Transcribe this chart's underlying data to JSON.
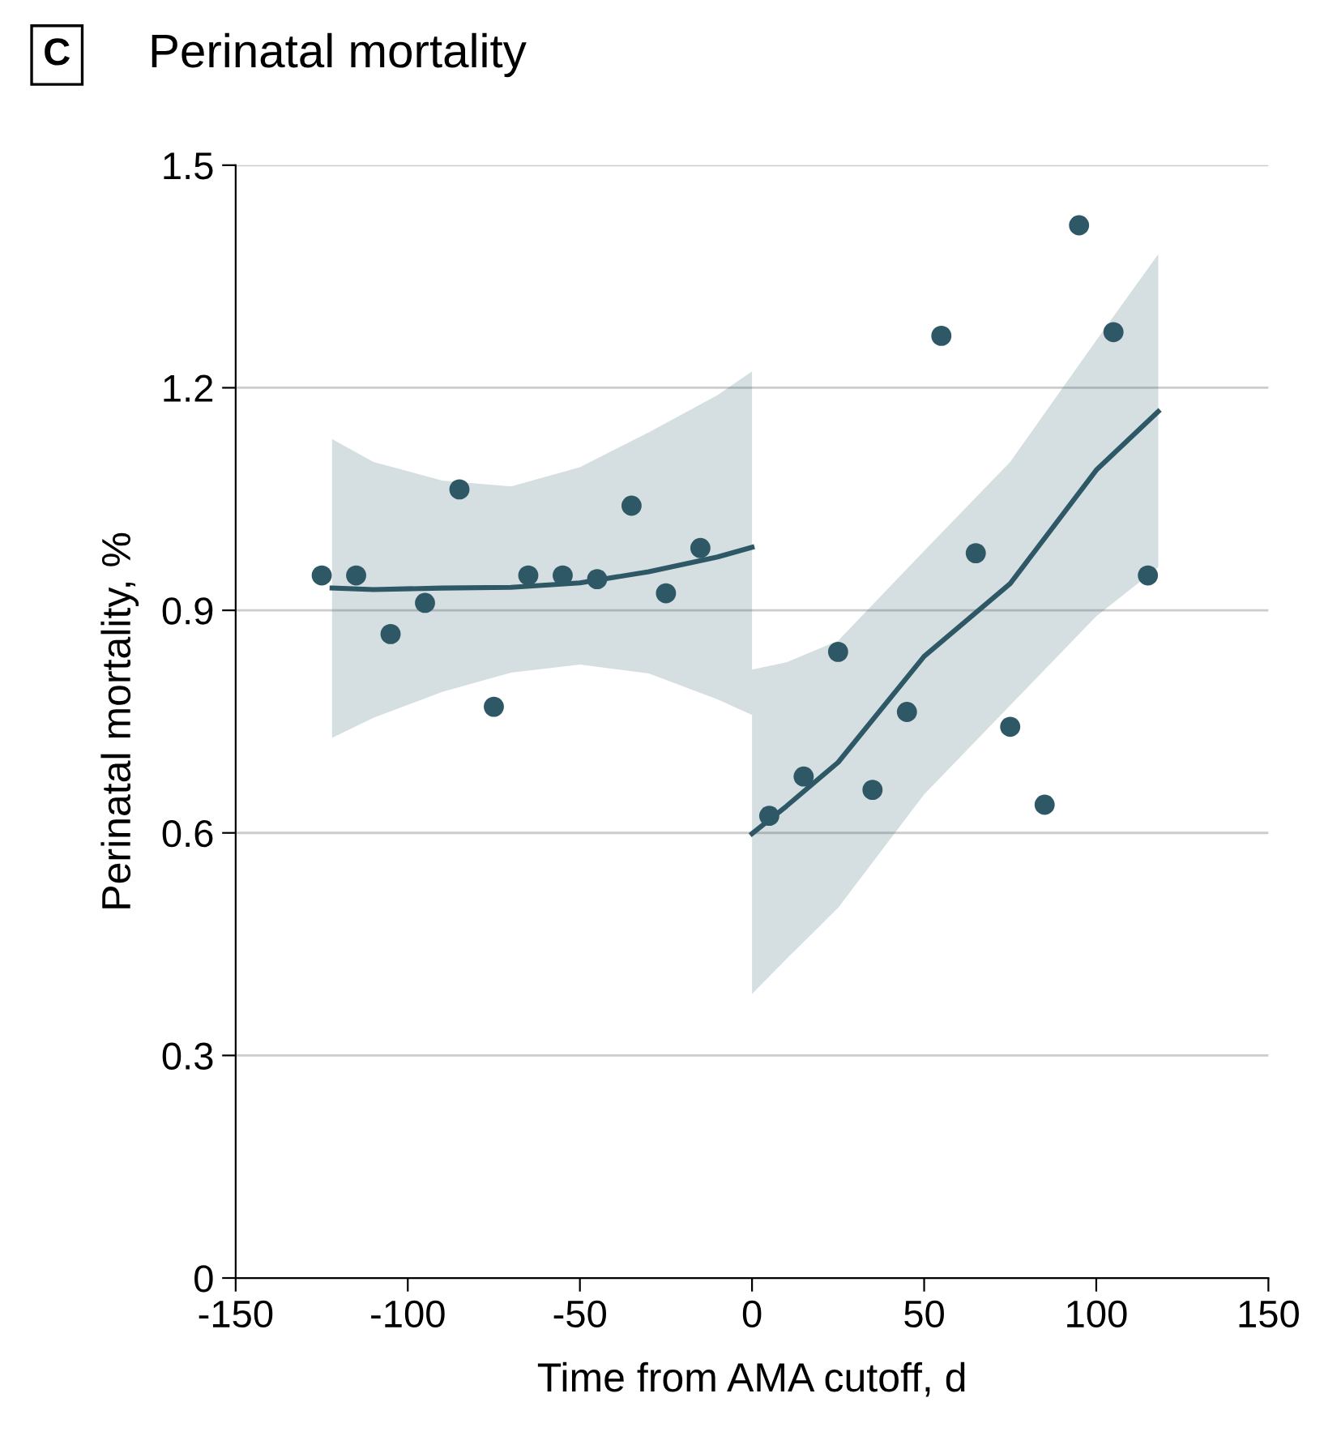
{
  "chart_data": {
    "type": "scatter",
    "title": "Perinatal mortality",
    "annotations": [
      "C"
    ],
    "xlabel": "Time from AMA cutoff, d",
    "ylabel": "Perinatal mortality, %",
    "xlim": [
      -150,
      150
    ],
    "xticks": [
      -150,
      -100,
      -50,
      0,
      50,
      100,
      150
    ],
    "ylim": [
      0,
      1.5
    ],
    "yticks": [
      0,
      0.3,
      0.6,
      0.9,
      1.2,
      1.5
    ],
    "grid": "y",
    "legend": false,
    "series": [
      {
        "type": "line",
        "color": "#2e5866",
        "x": [
          -122,
          -110,
          -90,
          -70,
          -50,
          -30,
          -10,
          0
        ],
        "values": [
          0.93,
          0.928,
          0.93,
          0.931,
          0.937,
          0.952,
          0.972,
          0.985
        ],
        "lower": [
          0.728,
          0.755,
          0.79,
          0.816,
          0.827,
          0.815,
          0.78,
          0.759
        ],
        "upper": [
          1.131,
          1.1,
          1.075,
          1.067,
          1.093,
          1.14,
          1.19,
          1.222
        ]
      },
      {
        "type": "line",
        "color": "#2e5866",
        "x": [
          0,
          10,
          25,
          50,
          75,
          100,
          118
        ],
        "values": [
          0.599,
          0.636,
          0.695,
          0.838,
          0.936,
          1.089,
          1.168
        ],
        "lower": [
          0.383,
          0.43,
          0.499,
          0.652,
          0.772,
          0.892,
          0.958
        ],
        "upper": [
          0.82,
          0.83,
          0.859,
          0.98,
          1.1,
          1.264,
          1.38
        ]
      },
      {
        "color": "#2e5866",
        "marker": "circle",
        "x": [
          -125,
          -115,
          -105,
          -95,
          -85,
          -75,
          -65,
          -55,
          -45,
          -35,
          -25,
          -15,
          5,
          15,
          25,
          35,
          45,
          55,
          65,
          75,
          85,
          95,
          105,
          115
        ],
        "values": [
          0.947,
          0.947,
          0.868,
          0.91,
          1.063,
          0.77,
          0.947,
          0.947,
          0.942,
          1.041,
          0.923,
          0.984,
          0.623,
          0.676,
          0.844,
          0.658,
          0.763,
          1.27,
          0.977,
          0.743,
          0.638,
          1.419,
          1.275,
          0.947
        ]
      }
    ]
  }
}
